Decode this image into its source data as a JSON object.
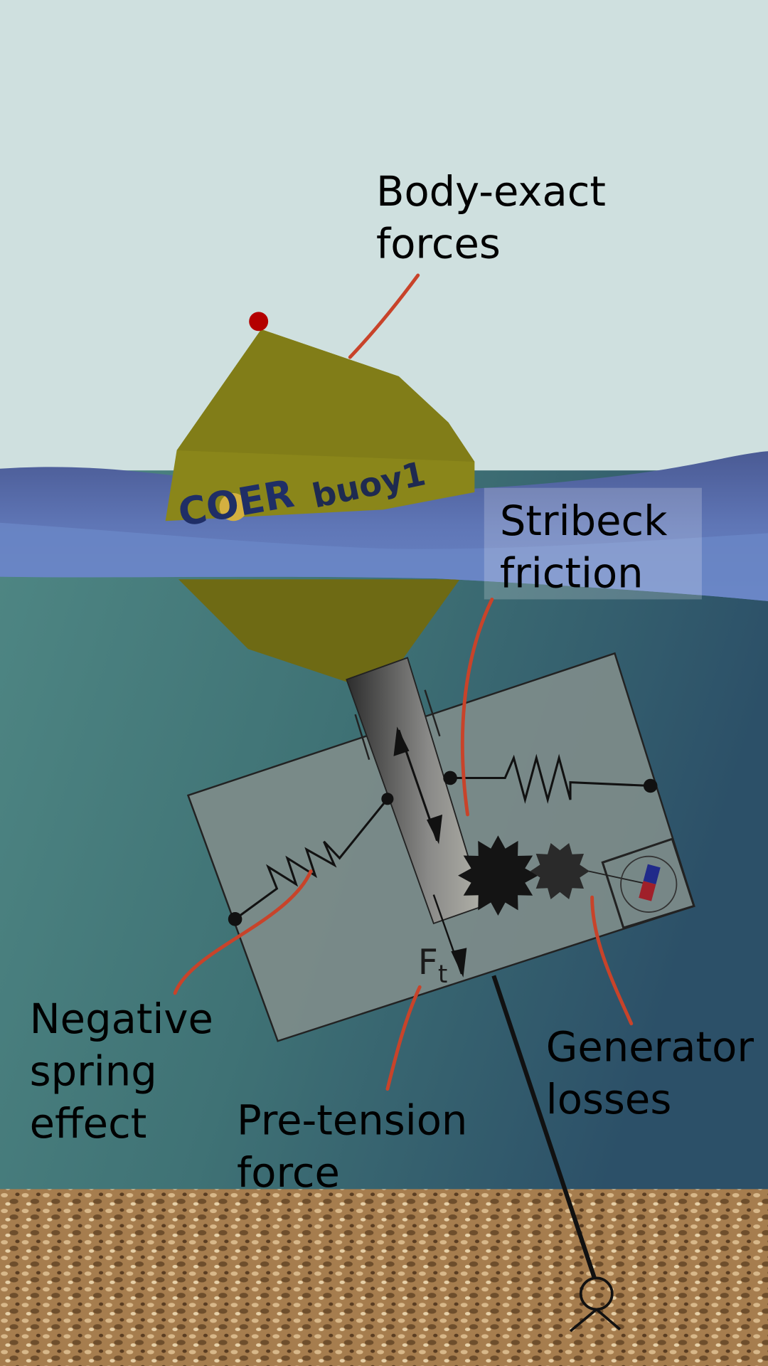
{
  "labels": [
    {
      "lines": [
        "Body-exact",
        "forces"
      ]
    },
    {
      "lines": [
        "Stribeck",
        "friction"
      ]
    },
    {
      "lines": [
        "Negative",
        "spring",
        "effect"
      ]
    },
    {
      "lines": [
        "Pre-tension",
        "force"
      ]
    },
    {
      "lines": [
        "Generator",
        "losses"
      ]
    }
  ],
  "buoy": {
    "logo_prefix": "COER",
    "logo_suffix": "buoy1"
  },
  "force_symbol": {
    "base": "F",
    "subscript": "t"
  }
}
